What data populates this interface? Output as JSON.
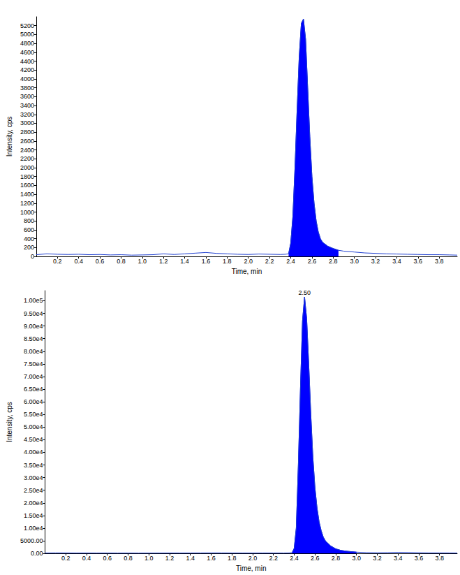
{
  "chart_data": [
    {
      "type": "line",
      "x_label": "Time, min",
      "y_label": "Intensity, cps",
      "grid": false,
      "x": [
        0.0,
        0.1,
        0.2,
        0.3,
        0.4,
        0.5,
        0.6,
        0.7,
        0.8,
        0.9,
        1.0,
        1.1,
        1.2,
        1.3,
        1.4,
        1.5,
        1.6,
        1.7,
        1.8,
        1.9,
        2.0,
        2.1,
        2.2,
        2.3,
        2.35,
        2.38,
        2.4,
        2.42,
        2.44,
        2.46,
        2.48,
        2.5,
        2.52,
        2.54,
        2.56,
        2.58,
        2.6,
        2.62,
        2.64,
        2.66,
        2.68,
        2.7,
        2.75,
        2.8,
        2.85,
        2.9,
        3.0,
        3.1,
        3.2,
        3.3,
        3.4,
        3.5,
        3.6,
        3.7,
        3.8,
        3.9,
        3.97
      ],
      "series": [
        {
          "type": "line",
          "color": "#1f3fcf",
          "values": [
            40,
            60,
            50,
            45,
            50,
            40,
            45,
            35,
            40,
            30,
            35,
            40,
            60,
            45,
            60,
            75,
            90,
            70,
            60,
            50,
            45,
            55,
            50,
            45,
            50,
            60,
            300,
            900,
            2000,
            3300,
            4500,
            5250,
            5350,
            4900,
            3800,
            2700,
            1800,
            1200,
            800,
            550,
            400,
            320,
            230,
            180,
            140,
            120,
            100,
            80,
            70,
            60,
            55,
            50,
            45,
            40,
            40,
            35,
            30
          ]
        },
        {
          "type": "area",
          "color": "#0000ff",
          "values": [
            null,
            null,
            null,
            null,
            null,
            null,
            null,
            null,
            null,
            null,
            null,
            null,
            null,
            null,
            null,
            null,
            null,
            null,
            null,
            null,
            null,
            null,
            null,
            null,
            null,
            60,
            300,
            900,
            2000,
            3300,
            4500,
            5250,
            5350,
            4900,
            3800,
            2700,
            1800,
            1200,
            800,
            550,
            400,
            320,
            230,
            180,
            140,
            null,
            null,
            null,
            null,
            null,
            null,
            null,
            null,
            null,
            null,
            null,
            null
          ]
        }
      ],
      "xlim": [
        0,
        3.97
      ],
      "xticks": [
        0.2,
        0.4,
        0.6,
        0.8,
        {
          "value": 1,
          "label": "1.0"
        },
        1.2,
        1.4,
        1.6,
        1.8,
        {
          "value": 2,
          "label": "2.0"
        },
        2.2,
        2.4,
        2.6,
        2.8,
        {
          "value": 3,
          "label": "3.0"
        },
        3.2,
        3.4,
        3.6,
        3.8
      ],
      "ylim": [
        0,
        5400
      ],
      "yticks": [
        0,
        200,
        400,
        600,
        800,
        1000,
        1200,
        1400,
        1600,
        1800,
        2000,
        2200,
        2400,
        2600,
        2800,
        3000,
        3200,
        3400,
        3600,
        3800,
        4000,
        4200,
        4400,
        4600,
        4800,
        5000,
        5200
      ]
    },
    {
      "type": "line",
      "x_label": "Time, min",
      "y_label": "Intensity, cps",
      "grid": false,
      "x": [
        0.0,
        0.1,
        0.2,
        0.3,
        0.4,
        0.5,
        0.6,
        0.7,
        0.8,
        0.9,
        1.0,
        1.1,
        1.2,
        1.3,
        1.4,
        1.5,
        1.6,
        1.7,
        1.8,
        1.9,
        2.0,
        2.1,
        2.2,
        2.3,
        2.35,
        2.38,
        2.4,
        2.42,
        2.44,
        2.46,
        2.48,
        2.5,
        2.52,
        2.54,
        2.56,
        2.58,
        2.6,
        2.62,
        2.64,
        2.66,
        2.68,
        2.7,
        2.75,
        2.8,
        2.85,
        2.9,
        3.0,
        3.1,
        3.2,
        3.3,
        3.4,
        3.5,
        3.6,
        3.7,
        3.8,
        3.9,
        3.97
      ],
      "series": [
        {
          "type": "line",
          "color": "#1f3fcf",
          "values": [
            150,
            200,
            180,
            150,
            160,
            140,
            150,
            130,
            140,
            120,
            130,
            140,
            160,
            150,
            170,
            180,
            200,
            190,
            170,
            160,
            150,
            170,
            160,
            150,
            180,
            300,
            2000,
            10000,
            35000,
            65000,
            92000,
            101500,
            93000,
            75000,
            55000,
            38000,
            26000,
            18000,
            12500,
            9000,
            6500,
            5000,
            3000,
            1800,
            1200,
            900,
            500,
            300,
            250,
            300,
            400,
            350,
            250,
            200,
            200,
            180,
            150
          ]
        },
        {
          "type": "area",
          "color": "#0000ff",
          "values": [
            null,
            null,
            null,
            null,
            null,
            null,
            null,
            null,
            null,
            null,
            null,
            null,
            null,
            null,
            null,
            null,
            null,
            null,
            null,
            null,
            null,
            null,
            null,
            null,
            null,
            300,
            2000,
            10000,
            35000,
            65000,
            92000,
            101500,
            93000,
            75000,
            55000,
            38000,
            26000,
            18000,
            12500,
            9000,
            6500,
            5000,
            3000,
            1800,
            1200,
            900,
            500,
            null,
            null,
            null,
            null,
            null,
            null,
            null,
            null,
            null,
            null
          ]
        }
      ],
      "annotations": [
        {
          "x": 2.5,
          "y": 101500,
          "text": "2.50"
        }
      ],
      "xlim": [
        0,
        3.97
      ],
      "xticks": [
        0.2,
        0.4,
        0.6,
        0.8,
        {
          "value": 1,
          "label": "1.0"
        },
        1.2,
        1.4,
        1.6,
        1.8,
        {
          "value": 2,
          "label": "2.0"
        },
        2.2,
        2.4,
        2.6,
        2.8,
        {
          "value": 3,
          "label": "3.0"
        },
        3.2,
        3.4,
        3.6,
        3.8
      ],
      "ylim": [
        0,
        104000
      ],
      "yticks": [
        {
          "value": 0,
          "label": "0.00"
        },
        {
          "value": 5000,
          "label": "5000.00"
        },
        {
          "value": 10000,
          "label": "1.00e4"
        },
        {
          "value": 15000,
          "label": "1.50e4"
        },
        {
          "value": 20000,
          "label": "2.00e4"
        },
        {
          "value": 25000,
          "label": "2.50e4"
        },
        {
          "value": 30000,
          "label": "3.00e4"
        },
        {
          "value": 35000,
          "label": "3.50e4"
        },
        {
          "value": 40000,
          "label": "4.00e4"
        },
        {
          "value": 45000,
          "label": "4.50e4"
        },
        {
          "value": 50000,
          "label": "5.00e4"
        },
        {
          "value": 55000,
          "label": "5.50e4"
        },
        {
          "value": 60000,
          "label": "6.00e4"
        },
        {
          "value": 65000,
          "label": "6.50e4"
        },
        {
          "value": 70000,
          "label": "7.00e4"
        },
        {
          "value": 75000,
          "label": "7.50e4"
        },
        {
          "value": 80000,
          "label": "8.00e4"
        },
        {
          "value": 85000,
          "label": "8.50e4"
        },
        {
          "value": 90000,
          "label": "9.00e4"
        },
        {
          "value": 95000,
          "label": "9.50e4"
        },
        {
          "value": 100000,
          "label": "1.00e5"
        }
      ]
    }
  ]
}
